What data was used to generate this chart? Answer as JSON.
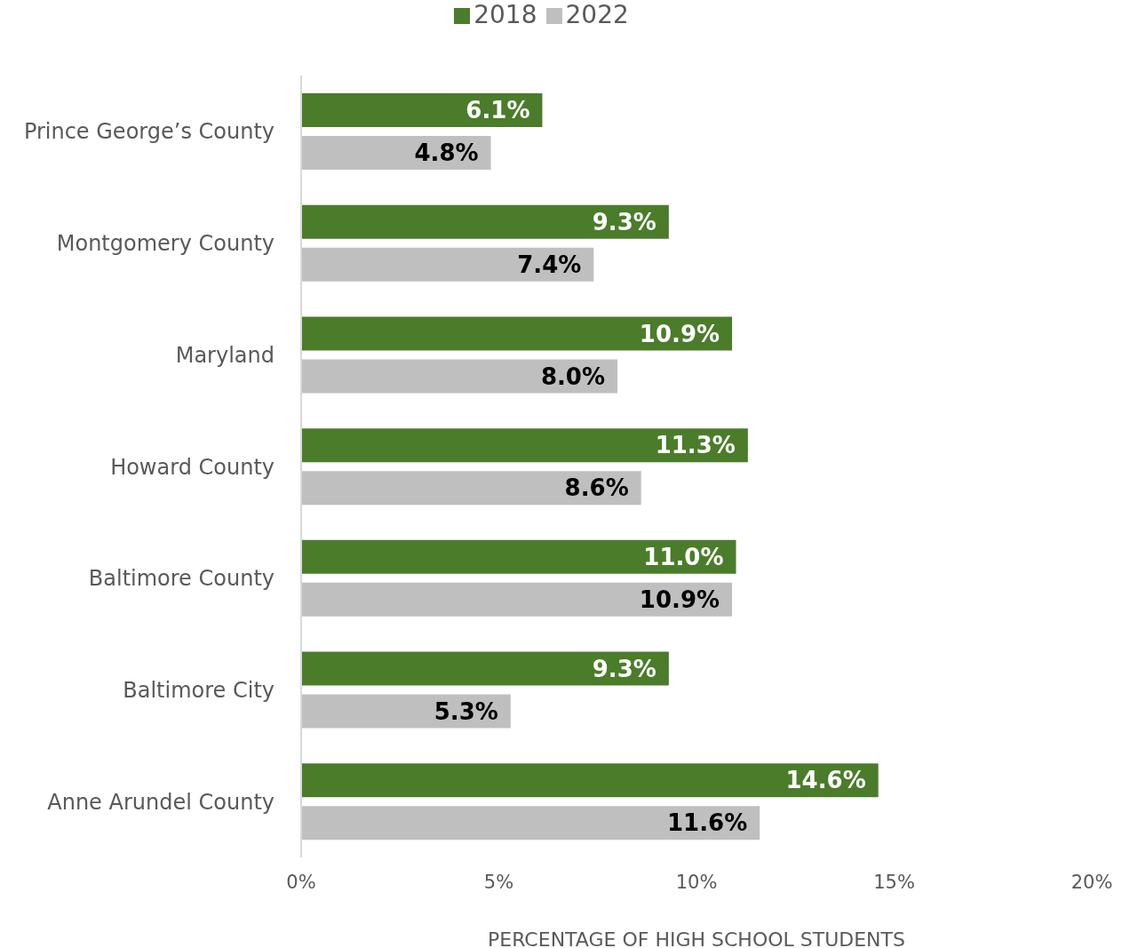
{
  "chart_data": {
    "type": "bar",
    "orientation": "horizontal",
    "xlabel": "PERCENTAGE OF HIGH SCHOOL STUDENTS",
    "categories": [
      "Prince George’s County",
      "Montgomery County",
      "Maryland",
      "Howard County",
      "Baltimore County",
      "Baltimore City",
      "Anne Arundel County"
    ],
    "series": [
      {
        "name": "2018",
        "color": "#4a7c2a",
        "values": [
          6.1,
          9.3,
          10.9,
          11.3,
          11.0,
          9.3,
          14.6
        ],
        "value_labels": [
          "6.1%",
          "9.3%",
          "10.9%",
          "11.3%",
          "11.0%",
          "9.3%",
          "14.6%"
        ]
      },
      {
        "name": "2022",
        "color": "#bfbfbf",
        "values": [
          4.8,
          7.4,
          8.0,
          8.6,
          10.9,
          5.3,
          11.6
        ],
        "value_labels": [
          "4.8%",
          "7.4%",
          "8.0%",
          "8.6%",
          "10.9%",
          "5.3%",
          "11.6%"
        ]
      }
    ],
    "xlim": [
      0,
      20
    ],
    "xticks": [
      {
        "value": 0,
        "label": "0%"
      },
      {
        "value": 5,
        "label": "5%"
      },
      {
        "value": 10,
        "label": "10%"
      },
      {
        "value": 15,
        "label": "15%"
      },
      {
        "value": 20,
        "label": "20%"
      }
    ],
    "legend": "top"
  }
}
